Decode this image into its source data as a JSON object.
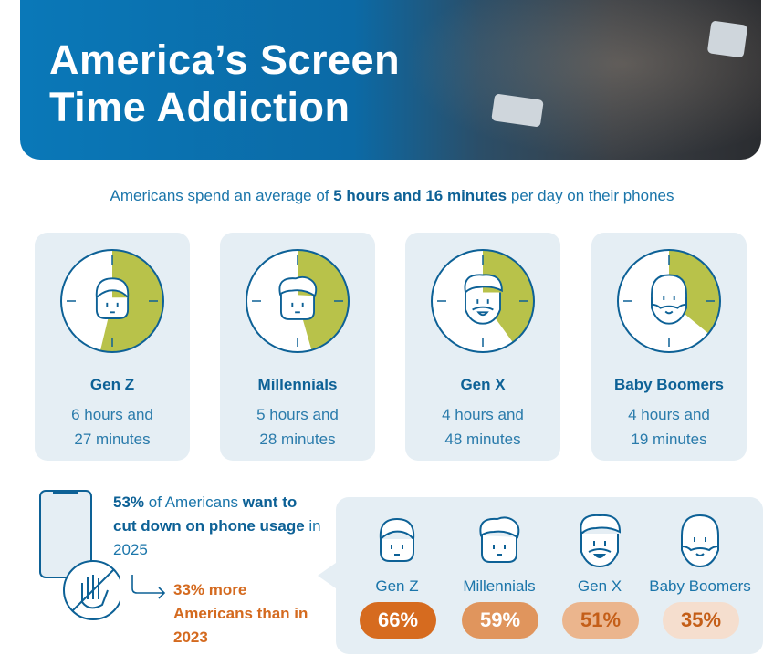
{
  "header": {
    "title_line1": "America’s Screen",
    "title_line2": "Time Addiction"
  },
  "subtitle": {
    "pre": "Americans spend an average of ",
    "bold": "5 hours and 16 minutes",
    "post": " per day on their phones"
  },
  "accent": "#b8c24a",
  "generations": [
    {
      "name": "Gen Z",
      "line1": "6 hours and",
      "line2": "27 minutes",
      "hours_fraction_of_12": 0.5375
    },
    {
      "name": "Millennials",
      "line1": "5 hours and",
      "line2": "28 minutes",
      "hours_fraction_of_12": 0.4556
    },
    {
      "name": "Gen X",
      "line1": "4 hours and",
      "line2": "48 minutes",
      "hours_fraction_of_12": 0.4
    },
    {
      "name": "Baby Boomers",
      "line1": "4 hours and",
      "line2": "19 minutes",
      "hours_fraction_of_12": 0.3597
    }
  ],
  "stat": {
    "p1": "53%",
    "p2": " of Americans ",
    "p3": "want to cut down on phone usage",
    "p4": " in 2025",
    "sub": "33% more Americans than in 2023"
  },
  "cut_down": [
    {
      "name": "Gen Z",
      "pct": "66%",
      "bg": "#d66b1f",
      "fg": "#ffffff"
    },
    {
      "name": "Millennials",
      "pct": "59%",
      "bg": "#e0955d",
      "fg": "#ffffff"
    },
    {
      "name": "Gen X",
      "pct": "51%",
      "bg": "#ebb58d",
      "fg": "#c45e18"
    },
    {
      "name": "Baby Boomers",
      "pct": "35%",
      "bg": "#f5dece",
      "fg": "#c45e18"
    }
  ]
}
